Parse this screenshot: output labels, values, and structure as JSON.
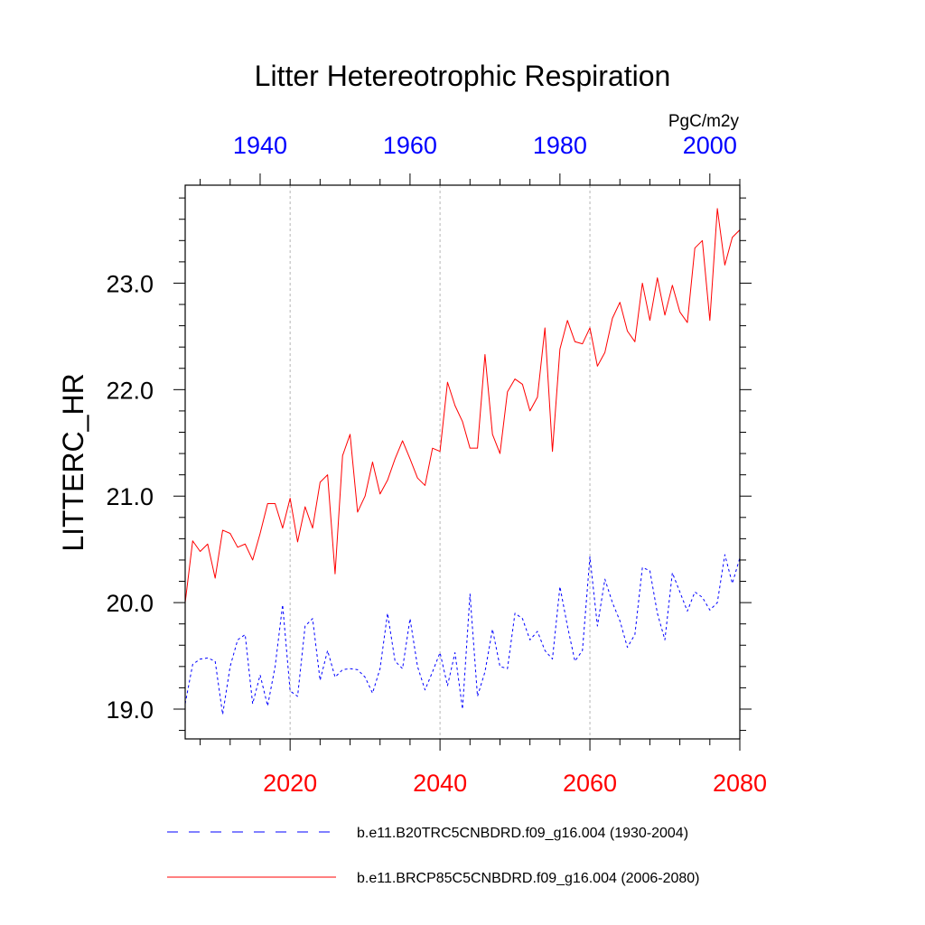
{
  "chart_data": {
    "type": "line",
    "title": "Litter Hetereotrophic Respiration",
    "ylabel": "LITTERC_HR",
    "units": "PgC/m2y",
    "ylim": [
      18.72,
      23.92
    ],
    "yticks": [
      19.0,
      20.0,
      21.0,
      22.0,
      23.0
    ],
    "ytick_labels": [
      "19.0",
      "20.0",
      "21.0",
      "22.0",
      "23.0"
    ],
    "x_bottom": {
      "range": [
        2006,
        2080
      ],
      "ticks": [
        2020,
        2040,
        2060,
        2080
      ],
      "tick_labels": [
        "2020",
        "2040",
        "2060",
        "2080"
      ],
      "color": "#ff0000"
    },
    "x_top": {
      "range": [
        1930,
        2004
      ],
      "ticks": [
        1940,
        1960,
        1980,
        2000
      ],
      "tick_labels": [
        "1940",
        "1960",
        "1980",
        "2000"
      ],
      "color": "#0000ff"
    },
    "vgrid_at": [
      2020,
      2040,
      2060
    ],
    "series": [
      {
        "name": "b.e11.B20TRC5CNBDRD.f09_g16.004 (1930-2004)",
        "axis": "top",
        "color": "#0000ff",
        "dash": true,
        "x_start": 1930,
        "values": [
          19.05,
          19.42,
          19.47,
          19.48,
          19.45,
          18.95,
          19.4,
          19.65,
          19.7,
          19.05,
          19.32,
          19.03,
          19.4,
          19.98,
          19.17,
          19.12,
          19.78,
          19.85,
          19.27,
          19.55,
          19.3,
          19.37,
          19.38,
          19.37,
          19.3,
          19.15,
          19.38,
          19.9,
          19.45,
          19.38,
          19.85,
          19.4,
          19.18,
          19.35,
          19.53,
          19.22,
          19.53,
          19.0,
          20.08,
          19.12,
          19.35,
          19.75,
          19.4,
          19.38,
          19.9,
          19.85,
          19.65,
          19.73,
          19.55,
          19.47,
          20.15,
          19.78,
          19.45,
          19.55,
          20.43,
          19.78,
          20.22,
          20.0,
          19.83,
          19.58,
          19.7,
          20.33,
          20.3,
          19.9,
          19.65,
          20.28,
          20.1,
          19.92,
          20.1,
          20.05,
          19.93,
          20.0,
          20.45,
          20.18,
          20.42
        ]
      },
      {
        "name": "b.e11.BRCP85C5CNBDRD.f09_g16.004 (2006-2080)",
        "axis": "bottom",
        "color": "#ff0000",
        "dash": false,
        "x_start": 2006,
        "values": [
          20.0,
          20.58,
          20.48,
          20.55,
          20.23,
          20.68,
          20.65,
          20.52,
          20.55,
          20.4,
          20.65,
          20.93,
          20.93,
          20.7,
          20.98,
          20.57,
          20.9,
          20.7,
          21.13,
          21.2,
          20.27,
          21.38,
          21.58,
          20.85,
          21.0,
          21.32,
          21.02,
          21.15,
          21.35,
          21.52,
          21.35,
          21.17,
          21.1,
          21.45,
          21.42,
          22.07,
          21.85,
          21.7,
          21.45,
          21.45,
          22.33,
          21.58,
          21.4,
          21.98,
          22.1,
          22.05,
          21.8,
          21.93,
          22.58,
          21.42,
          22.38,
          22.65,
          22.45,
          22.43,
          22.58,
          22.22,
          22.35,
          22.67,
          22.82,
          22.55,
          22.45,
          23.0,
          22.65,
          23.05,
          22.7,
          22.98,
          22.73,
          22.63,
          23.33,
          23.4,
          22.65,
          23.7,
          23.17,
          23.43,
          23.5
        ]
      }
    ]
  }
}
